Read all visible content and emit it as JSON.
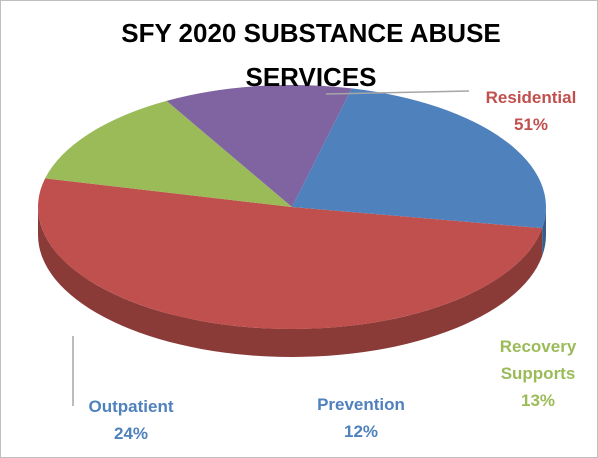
{
  "chart_data": {
    "type": "pie3d",
    "title": "SFY 2020 SUBSTANCE ABUSE SERVICES",
    "categories": [
      "Residential",
      "Recovery Supports",
      "Prevention",
      "Outpatient"
    ],
    "values": [
      51,
      13,
      12,
      24
    ],
    "value_labels": [
      "51%",
      "13%",
      "12%",
      "24%"
    ],
    "colors": [
      "#c0504d",
      "#9bbb59",
      "#8064a2",
      "#4f81bd"
    ],
    "label_colors": [
      "#c0504d",
      "#9bbb59",
      "#4f81bd",
      "#4f81bd"
    ]
  }
}
